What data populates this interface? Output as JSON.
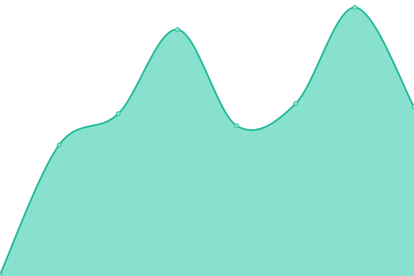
{
  "chart_data": {
    "type": "area",
    "categories": [
      null,
      null,
      null,
      null,
      null,
      null,
      null,
      null
    ],
    "series": [
      {
        "color": "#1fb896",
        "fill": "#88e0cf",
        "values": [
          0.5,
          47.5,
          58.8,
          89.3,
          54.5,
          62.5,
          97.3,
          61.3
        ]
      }
    ],
    "ylim": [
      0,
      100
    ],
    "grid": false,
    "smooth": true,
    "markers": true
  }
}
